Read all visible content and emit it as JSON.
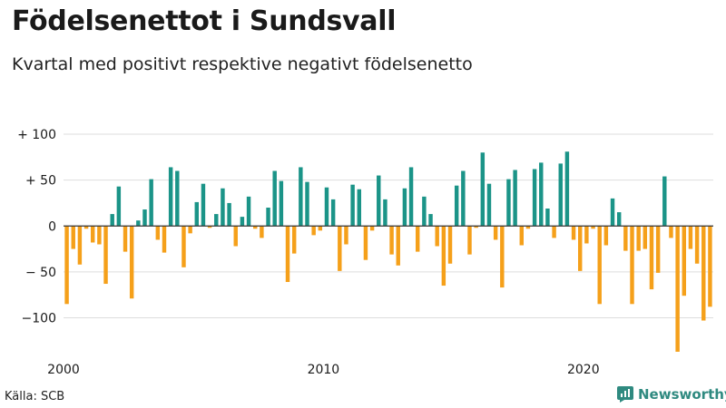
{
  "header": {
    "title": "Födelsenettot i Sundsvall",
    "subtitle": "Kvartal med positivt respektive negativt födelsenetto"
  },
  "footer": {
    "source": "Källa: SCB",
    "brand": "Newsworthy"
  },
  "colors": {
    "positive": "#1b9488",
    "negative": "#f5a01a",
    "grid": "#dddddd",
    "zero_line": "#333333",
    "brand": "#2f8a80"
  },
  "chart_data": {
    "type": "bar",
    "title": "Födelsenettot i Sundsvall",
    "subtitle": "Kvartal med positivt respektive negativt födelsenetto",
    "xlabel": "",
    "ylabel": "",
    "ylim": [
      -140,
      100
    ],
    "y_ticks": [
      100,
      50,
      0,
      -50,
      -100
    ],
    "y_tick_labels": [
      "+ 100",
      "+  50",
      "0",
      "− 50",
      "−100"
    ],
    "x_tick_labels": [
      {
        "label": "2000",
        "index": 0
      },
      {
        "label": "2010",
        "index": 40
      },
      {
        "label": "2020",
        "index": 80
      }
    ],
    "grid": true,
    "legend": "none",
    "start": "2000 Q1",
    "frequency": "quarterly",
    "values": [
      -85,
      -25,
      -42,
      -3,
      -18,
      -20,
      -63,
      13,
      43,
      -28,
      -79,
      6,
      18,
      51,
      -15,
      -29,
      64,
      60,
      -45,
      -8,
      26,
      46,
      -2,
      13,
      41,
      25,
      -22,
      10,
      32,
      -3,
      -13,
      20,
      60,
      49,
      -61,
      -30,
      64,
      48,
      -10,
      -5,
      42,
      29,
      -49,
      -20,
      45,
      40,
      -37,
      -5,
      55,
      29,
      -31,
      -43,
      41,
      64,
      -28,
      32,
      13,
      -22,
      -65,
      -41,
      44,
      60,
      -31,
      -2,
      80,
      46,
      -15,
      -67,
      51,
      61,
      -21,
      -3,
      62,
      69,
      19,
      -13,
      68,
      81,
      -15,
      -49,
      -19,
      -3,
      -85,
      -21,
      30,
      15,
      -27,
      -85,
      -27,
      -25,
      -69,
      -51,
      54,
      -13,
      -137,
      -76,
      -25,
      -41,
      -103,
      -88
    ]
  }
}
